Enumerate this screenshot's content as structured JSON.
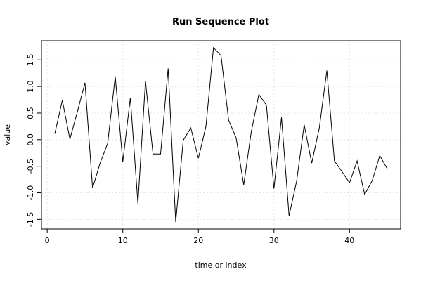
{
  "chart_data": {
    "type": "line",
    "title": "Run Sequence Plot",
    "x_label": "time or index",
    "y_label": "value",
    "x": [
      1,
      2,
      3,
      4,
      5,
      6,
      7,
      8,
      9,
      10,
      11,
      12,
      13,
      14,
      15,
      16,
      17,
      18,
      19,
      20,
      21,
      22,
      23,
      24,
      25,
      26,
      27,
      28,
      29,
      30,
      31,
      32,
      33,
      34,
      35,
      36,
      37,
      38,
      39,
      40,
      41,
      42,
      43,
      44,
      45
    ],
    "series": [
      {
        "color": "#000000",
        "values": [
          0.11,
          0.74,
          0.01,
          0.53,
          1.07,
          -0.91,
          -0.44,
          -0.07,
          1.19,
          -0.42,
          0.79,
          -1.2,
          1.1,
          -0.27,
          -0.27,
          1.34,
          -1.55,
          -0.01,
          0.22,
          -0.35,
          0.25,
          1.73,
          1.58,
          0.37,
          0.03,
          -0.85,
          0.15,
          0.85,
          0.65,
          -0.92,
          0.42,
          -1.43,
          -0.78,
          0.28,
          -0.44,
          0.22,
          1.3,
          -0.4,
          -0.6,
          -0.81,
          -0.4,
          -1.03,
          -0.77,
          -0.3,
          -0.55
        ]
      }
    ],
    "xlim": [
      -0.76,
      46.76
    ],
    "ylim": [
      -1.68,
      1.86
    ],
    "xticks": [
      0,
      10,
      20,
      30,
      40
    ],
    "yticks": [
      -1.5,
      {
        "value": -1,
        "label": "-1.0"
      },
      -0.5,
      {
        "value": 0,
        "label": "0.0"
      },
      0.5,
      {
        "value": 1,
        "label": "1.0"
      },
      1.5
    ],
    "grid": true
  }
}
